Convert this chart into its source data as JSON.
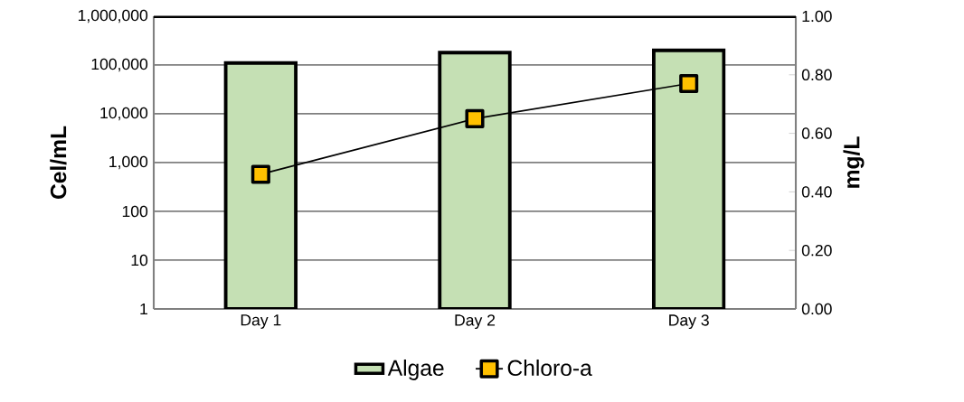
{
  "chart_data": {
    "type": "bar",
    "categories": [
      "Day 1",
      "Day 2",
      "Day 3"
    ],
    "ylabel": "Cel/mL",
    "y2label": "mg/L",
    "log": "y",
    "grid": "y",
    "legend": "bottom",
    "ylim": [
      1,
      1000000
    ],
    "yticks": [
      {
        "value": 1,
        "label": "1"
      },
      {
        "value": 10,
        "label": "10"
      },
      {
        "value": 100,
        "label": "100"
      },
      {
        "value": 1000,
        "label": "1,000"
      },
      {
        "value": 10000,
        "label": "10,000"
      },
      {
        "value": 100000,
        "label": "100,000"
      },
      {
        "value": 1000000,
        "label": "1,000,000"
      }
    ],
    "y2lim": [
      0,
      1
    ],
    "y2ticks": [
      {
        "value": 0,
        "label": "0.00"
      },
      {
        "value": 0.2,
        "label": "0.20"
      },
      {
        "value": 0.4,
        "label": "0.40"
      },
      {
        "value": 0.6,
        "label": "0.60"
      },
      {
        "value": 0.8,
        "label": "0.80"
      },
      {
        "value": 1,
        "label": "1.00"
      }
    ],
    "series": [
      {
        "name": "Algae",
        "color": "#c5e0b4",
        "values": [
          110000,
          180000,
          200000
        ]
      },
      {
        "name": "Chloro-a",
        "type": "line",
        "axis": "y2",
        "color": "#ffc000",
        "marker": "square",
        "line_style": "solid",
        "values": [
          0.46,
          0.65,
          0.77
        ]
      }
    ]
  }
}
